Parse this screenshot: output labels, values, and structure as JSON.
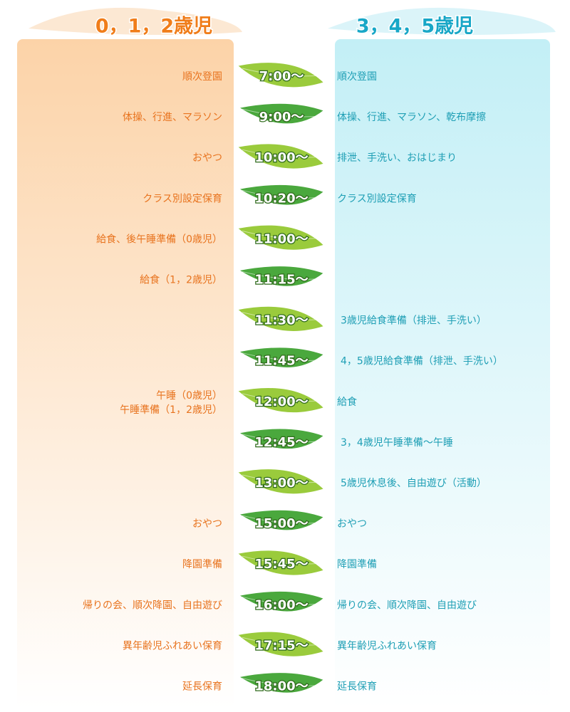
{
  "header": {
    "left": "0，1，2歳児",
    "right": "3，4，5歳児"
  },
  "rows": [
    {
      "time": "7:00～",
      "left": "順次登園",
      "right": "順次登園"
    },
    {
      "time": "9:00～",
      "left": "体操、行進、マラソン",
      "right": "体操、行進、マラソン、乾布摩擦"
    },
    {
      "time": "10:00～",
      "left": "おやつ",
      "right": "排泄、手洗い、おはじまり"
    },
    {
      "time": "10:20～",
      "left": "クラス別設定保育",
      "right": "クラス別設定保育"
    },
    {
      "time": "11:00～",
      "left": "給食、後午睡準備（0歳児）"
    },
    {
      "time": "11:15～",
      "left": "給食（1，2歳児）"
    },
    {
      "time": "11:30～",
      "right": "3歳児給食準備（排泄、手洗い）"
    },
    {
      "time": "11:45～",
      "right": "4，5歳児給食準備（排泄、手洗い）"
    },
    {
      "time": "12:00～",
      "left": [
        "午睡（0歳児）",
        "午睡準備（1，2歳児）"
      ],
      "right": "給食"
    },
    {
      "time": "12:45～",
      "right": "3，4歳児午睡準備～午睡"
    },
    {
      "time": "13:00～",
      "right": "5歳児休息後、自由遊び（活動）"
    },
    {
      "time": "15:00～",
      "left": "おやつ",
      "right": "おやつ"
    },
    {
      "time": "15:45～",
      "left": "降園準備",
      "right": "降園準備"
    },
    {
      "time": "16:00～",
      "left": "帰りの会、順次降園、自由遊び",
      "right": "帰りの会、順次降園、自由遊び"
    },
    {
      "time": "17:15～",
      "left": "異年齢児ふれあい保育",
      "right": "異年齢児ふれあい保育"
    },
    {
      "time": "18:00～",
      "left": "延長保育",
      "right": "延長保育"
    }
  ]
}
